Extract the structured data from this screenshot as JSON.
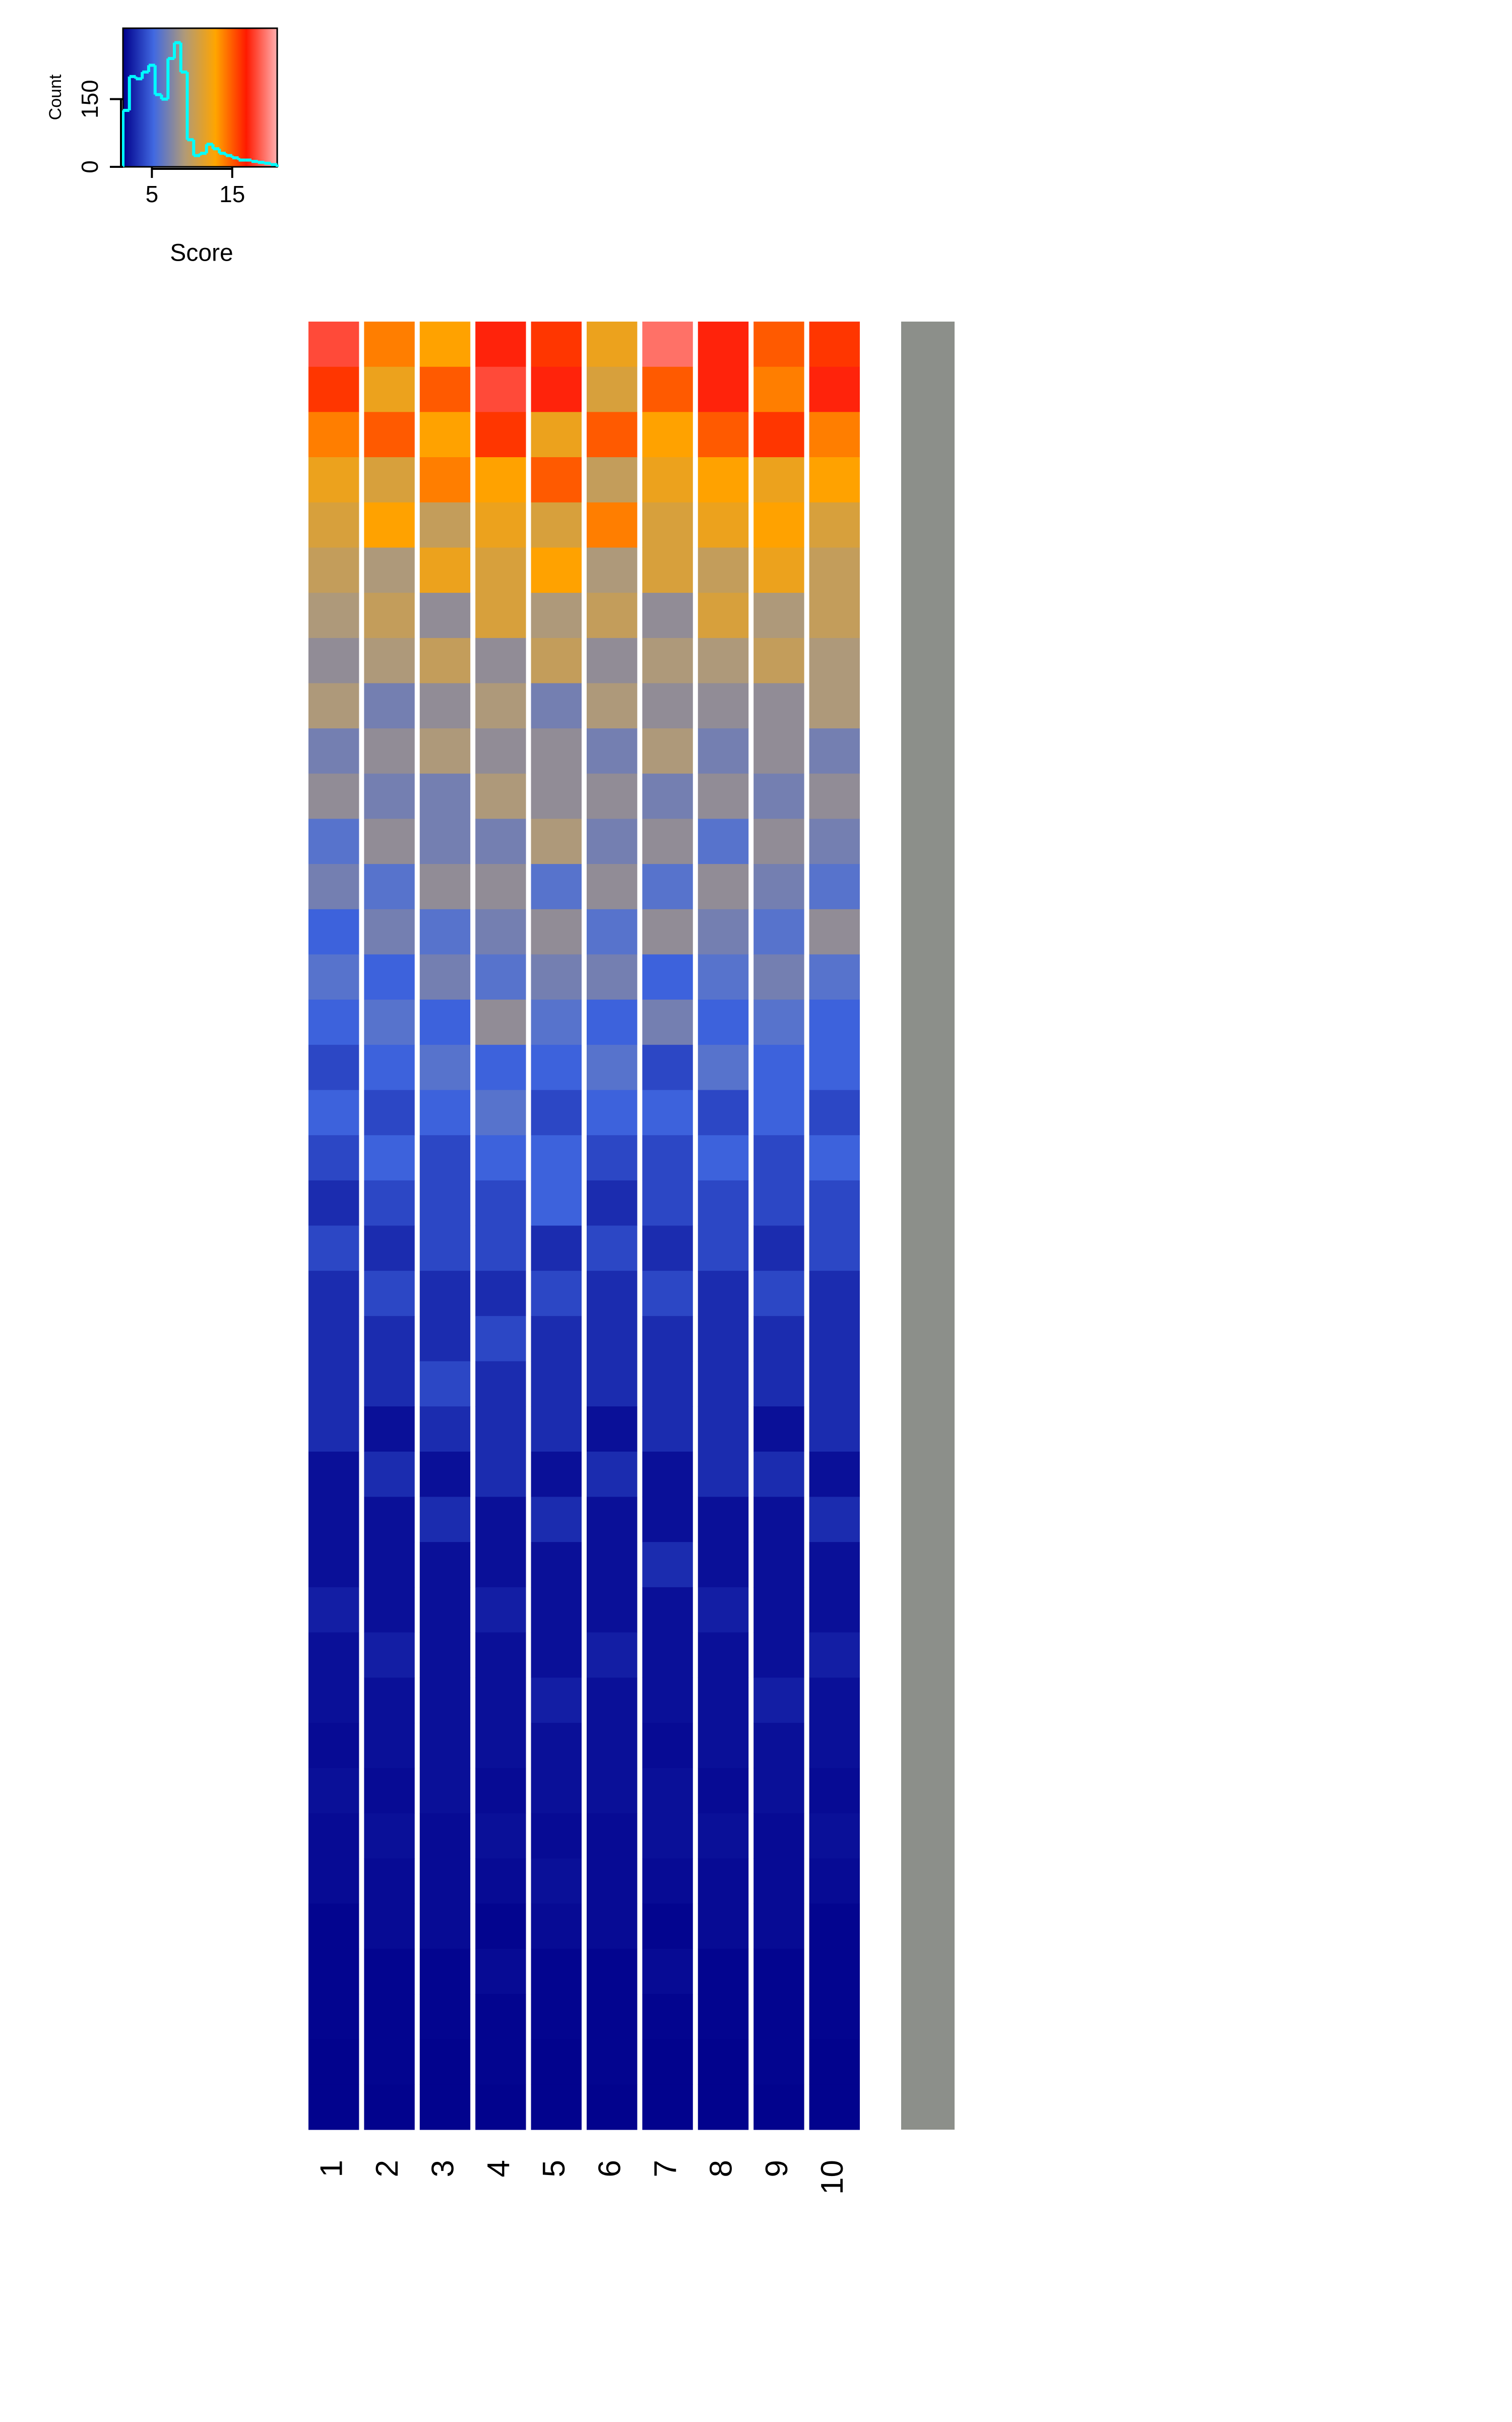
{
  "chart_data": {
    "type": "heatmap",
    "columns": [
      "1",
      "2",
      "3",
      "4",
      "5",
      "6",
      "7",
      "8",
      "9",
      "10"
    ],
    "colors": [
      "#00008b",
      "#4169e1",
      "#b09a78",
      "#ffa500",
      "#ff1a00",
      "#ffb0b0"
    ],
    "values": [
      [
        18,
        14,
        13,
        17,
        16,
        12,
        19,
        17,
        15,
        16
      ],
      [
        16,
        12,
        15,
        18,
        17,
        11,
        15,
        17,
        14,
        17
      ],
      [
        14,
        15,
        13,
        16,
        12,
        15,
        13,
        15,
        16,
        14
      ],
      [
        12,
        11,
        14,
        13,
        15,
        10,
        12,
        13,
        12,
        13
      ],
      [
        11,
        13,
        10,
        12,
        11,
        14,
        11,
        12,
        13,
        11
      ],
      [
        10,
        9,
        12,
        11,
        13,
        9,
        11,
        10,
        12,
        10
      ],
      [
        9,
        10,
        8,
        11,
        9,
        10,
        8,
        11,
        9,
        10
      ],
      [
        8,
        9,
        10,
        8,
        10,
        8,
        9,
        9,
        10,
        9
      ],
      [
        9,
        7,
        8,
        9,
        7,
        9,
        8,
        8,
        8,
        9
      ],
      [
        7,
        8,
        9,
        8,
        8,
        7,
        9,
        7,
        8,
        7
      ],
      [
        8,
        7,
        7,
        9,
        8,
        8,
        7,
        8,
        7,
        8
      ],
      [
        6,
        8,
        7,
        7,
        9,
        7,
        8,
        6,
        8,
        7
      ],
      [
        7,
        6,
        8,
        8,
        6,
        8,
        6,
        8,
        7,
        6
      ],
      [
        5,
        7,
        6,
        7,
        8,
        6,
        8,
        7,
        6,
        8
      ],
      [
        6,
        5,
        7,
        6,
        7,
        7,
        5,
        6,
        7,
        6
      ],
      [
        5,
        6,
        5,
        8,
        6,
        5,
        7,
        5,
        6,
        5
      ],
      [
        4,
        5,
        6,
        5,
        5,
        6,
        4,
        6,
        5,
        5
      ],
      [
        5,
        4,
        5,
        6,
        4,
        5,
        5,
        4,
        5,
        4
      ],
      [
        4,
        5,
        4,
        5,
        5,
        4,
        4,
        5,
        4,
        5
      ],
      [
        3,
        4,
        4,
        4,
        5,
        3,
        4,
        4,
        4,
        4
      ],
      [
        4,
        3,
        4,
        4,
        3,
        4,
        3,
        4,
        3,
        4
      ],
      [
        3,
        4,
        3,
        3,
        4,
        3,
        4,
        3,
        4,
        3
      ],
      [
        3,
        3,
        3,
        4,
        3,
        3,
        3,
        3,
        3,
        3
      ],
      [
        3,
        3,
        4,
        3,
        3,
        3,
        3,
        3,
        3,
        3
      ],
      [
        3,
        2,
        3,
        3,
        3,
        2,
        3,
        3,
        2,
        3
      ],
      [
        2,
        3,
        2,
        3,
        2,
        3,
        2,
        3,
        3,
        2
      ],
      [
        2,
        2,
        3,
        2,
        3,
        2,
        2,
        2,
        2,
        3
      ],
      [
        2,
        2,
        2,
        2,
        2,
        2,
        3,
        2,
        2,
        2
      ],
      [
        2.5,
        2,
        2,
        2.5,
        2,
        2,
        2,
        2.5,
        2,
        2
      ],
      [
        2,
        2.5,
        2,
        2,
        2,
        2.5,
        2,
        2,
        2,
        2.5
      ],
      [
        2,
        2,
        2,
        2,
        2.5,
        2,
        2,
        2,
        2.5,
        2
      ],
      [
        1.8,
        2,
        2,
        2,
        2,
        2,
        1.8,
        2,
        2,
        2
      ],
      [
        2,
        1.8,
        2,
        1.8,
        2,
        2,
        2,
        1.8,
        2,
        1.8
      ],
      [
        1.8,
        2,
        1.8,
        2,
        1.8,
        1.8,
        2,
        2,
        1.8,
        2
      ],
      [
        1.8,
        1.8,
        1.8,
        1.8,
        2,
        1.8,
        1.8,
        1.8,
        1.8,
        1.8
      ],
      [
        1.6,
        1.8,
        1.8,
        1.6,
        1.8,
        1.8,
        1.6,
        1.8,
        1.8,
        1.6
      ],
      [
        1.6,
        1.6,
        1.6,
        1.8,
        1.6,
        1.6,
        1.8,
        1.6,
        1.6,
        1.6
      ],
      [
        1.6,
        1.6,
        1.6,
        1.6,
        1.6,
        1.6,
        1.6,
        1.6,
        1.6,
        1.6
      ],
      [
        1.5,
        1.6,
        1.5,
        1.6,
        1.5,
        1.6,
        1.5,
        1.5,
        1.6,
        1.5
      ],
      [
        1.5,
        1.5,
        1.5,
        1.5,
        1.5,
        1.5,
        1.5,
        1.5,
        1.5,
        1.5
      ]
    ],
    "color_key": {
      "xlabel": "Score",
      "ylabel": "Count",
      "xlim": [
        1.4,
        20.6
      ],
      "xticks": [
        5,
        15
      ],
      "ylim": [
        0,
        307
      ],
      "yticks": [
        0,
        150
      ],
      "line_color": "#00ffff",
      "bins": [
        1.4,
        2.2,
        3,
        3.8,
        4.6,
        5.4,
        6.2,
        7,
        7.8,
        8.6,
        9.4,
        10.2,
        11,
        11.8,
        12.6,
        13.4,
        14.2,
        15,
        15.8,
        16.6,
        17.4,
        18.2,
        19,
        19.8,
        20.6
      ],
      "counts": [
        125,
        200,
        195,
        210,
        225,
        160,
        150,
        240,
        275,
        210,
        60,
        25,
        30,
        50,
        40,
        30,
        25,
        20,
        15,
        15,
        12,
        10,
        8,
        5
      ]
    }
  }
}
